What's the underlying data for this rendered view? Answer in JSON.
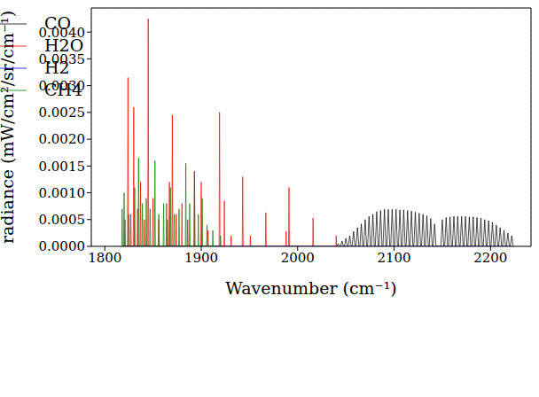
{
  "chart_data": {
    "type": "line",
    "x_label": "Wavenumber (cm⁻¹)",
    "y_label": "radiance (mW/cm²/sr/cm⁻¹)",
    "xlim": [
      1786,
      2242
    ],
    "xticks": [
      1800,
      1900,
      2000,
      2100,
      2200
    ],
    "ylim": [
      0,
      0.00445
    ],
    "yticks": [
      {
        "value": 0,
        "label": "0.0000"
      },
      {
        "value": 0.0005,
        "label": "0.0005"
      },
      {
        "value": 0.001,
        "label": "0.0010"
      },
      {
        "value": 0.0015,
        "label": "0.0015"
      },
      {
        "value": 0.002,
        "label": "0.0020"
      },
      {
        "value": 0.0025,
        "label": "0.0025"
      },
      {
        "value": 0.003,
        "label": "0.0030"
      },
      {
        "value": 0.0035,
        "label": "0.0035"
      },
      {
        "value": 0.004,
        "label": "0.0040"
      }
    ],
    "grid": true,
    "legend": "upper right",
    "series": [
      {
        "name": "CO",
        "color": "#000000",
        "x": [
          2040.5,
          2042,
          2043.5,
          2044.5,
          2046,
          2047.5,
          2048.5,
          2050,
          2051.5,
          2052.5,
          2054,
          2055.5,
          2056.5,
          2058,
          2059.5,
          2060.5,
          2062,
          2063.5,
          2064.5,
          2066,
          2067.5,
          2068.5,
          2070,
          2071.5,
          2072.5,
          2074,
          2075.5,
          2076.5,
          2078,
          2079.5,
          2080.5,
          2082,
          2083.5,
          2084.5,
          2086,
          2087.5,
          2088.5,
          2090,
          2091.5,
          2092.5,
          2094,
          2095.5,
          2096.5,
          2098,
          2099.5,
          2100.5,
          2102,
          2103.5,
          2104.5,
          2106,
          2107.5,
          2108.5,
          2110,
          2111.5,
          2112.5,
          2114,
          2115.5,
          2116.5,
          2118,
          2119.5,
          2120.5,
          2122,
          2123.5,
          2124.5,
          2126,
          2127.5,
          2128.5,
          2130,
          2131.5,
          2132.5,
          2134,
          2135.5,
          2136.5,
          2138,
          2139.5,
          2140.5,
          2142,
          2143.5,
          2148.5,
          2150,
          2151.5,
          2152.5,
          2154,
          2155.5,
          2156.5,
          2158,
          2159.5,
          2160.5,
          2162,
          2163.5,
          2164.5,
          2166,
          2167.5,
          2168.5,
          2170,
          2171.5,
          2172.5,
          2174,
          2175.5,
          2176.5,
          2178,
          2179.5,
          2180.5,
          2182,
          2183.5,
          2184.5,
          2186,
          2187.5,
          2188.5,
          2190,
          2191.5,
          2192.5,
          2194,
          2195.5,
          2196.5,
          2198,
          2199.5,
          2200.5,
          2202,
          2203.5,
          2204.5,
          2206,
          2207.5,
          2208.5,
          2210,
          2211.5,
          2212.5,
          2214,
          2215.5,
          2216.5,
          2218,
          2219.5,
          2220.5,
          2222,
          2223.5
        ],
        "values": [
          0,
          5e-05,
          0,
          0,
          0.0001,
          0,
          0,
          0.00015,
          0,
          0,
          0.0002,
          0,
          0,
          0.00028,
          0,
          0,
          0.00035,
          0,
          0,
          0.00042,
          0,
          0,
          0.0005,
          0,
          0,
          0.00056,
          0,
          0,
          0.0006,
          0,
          0,
          0.00065,
          0,
          0,
          0.00067,
          0,
          0,
          0.00069,
          0,
          0,
          0.00069,
          0,
          0,
          0.00069,
          0,
          0,
          0.00069,
          0,
          0,
          0.00068,
          0,
          0,
          0.00068,
          0,
          0,
          0.00067,
          0,
          0,
          0.00066,
          0,
          0,
          0.00064,
          0,
          0,
          0.00062,
          0,
          0,
          0.0006,
          0,
          0,
          0.00057,
          0,
          0,
          0.00052,
          0,
          0,
          0.00042,
          0,
          0,
          0.0005,
          0,
          0,
          0.00054,
          0,
          0,
          0.00055,
          0,
          0,
          0.00056,
          0,
          0,
          0.00056,
          0,
          0,
          0.00056,
          0,
          0,
          0.00056,
          0,
          0,
          0.00055,
          0,
          0,
          0.00055,
          0,
          0,
          0.00054,
          0,
          0,
          0.00053,
          0,
          0,
          0.0005,
          0,
          0,
          0.00048,
          0,
          0,
          0.00045,
          0,
          0,
          0.0004,
          0,
          0,
          0.00035,
          0,
          0,
          0.0003,
          0,
          0,
          0.00025,
          0,
          0,
          0.0002,
          0
        ]
      },
      {
        "name": "H2O",
        "color": "#ff0000",
        "x": [
          1820.5,
          1821,
          1821.5,
          1823.5,
          1824,
          1824.5,
          1826.5,
          1827,
          1827.5,
          1829.5,
          1830,
          1830.5,
          1833.5,
          1834,
          1834.5,
          1836.5,
          1837,
          1837.5,
          1840.5,
          1841,
          1841.5,
          1844.5,
          1845,
          1845.5,
          1849.5,
          1850,
          1850.5,
          1855.5,
          1856,
          1856.5,
          1863.5,
          1864,
          1864.5,
          1866.5,
          1867,
          1867.5,
          1869.5,
          1870,
          1870.5,
          1873.5,
          1874,
          1874.5,
          1879.5,
          1880,
          1880.5,
          1885.5,
          1886,
          1886.5,
          1892.5,
          1893,
          1893.5,
          1899.5,
          1900,
          1900.5,
          1906.5,
          1907,
          1907.5,
          1918.5,
          1919,
          1919.5,
          1923.5,
          1924,
          1924.5,
          1930.5,
          1931,
          1931.5,
          1942.5,
          1943,
          1943.5,
          1950.5,
          1951,
          1951.5,
          1966.5,
          1967,
          1967.5,
          1987.5,
          1988,
          1988.5,
          1990.5,
          1991,
          1991.5,
          2015.5,
          2016,
          2016.5,
          2039.5,
          2040,
          2040.5
        ],
        "values": [
          0,
          0.0005,
          0,
          0,
          0.00315,
          0,
          0,
          0.0006,
          0,
          0,
          0.0026,
          0,
          0,
          0.0007,
          0,
          0,
          0.0012,
          0,
          0,
          0.0005,
          0,
          0,
          0.00425,
          0,
          0,
          0.0009,
          0,
          0,
          0.0005,
          0,
          0,
          0.0008,
          0,
          0,
          0.0012,
          0,
          0,
          0.00245,
          0,
          0,
          0.0006,
          0,
          0,
          0.0008,
          0,
          0,
          0.0005,
          0,
          0,
          0.0014,
          0,
          0,
          0.0012,
          0,
          0,
          0.0003,
          0,
          0,
          0.0025,
          0,
          0,
          0.00085,
          0,
          0,
          0.0002,
          0,
          0,
          0.0013,
          0,
          0,
          0.0002,
          0,
          0,
          0.00063,
          0,
          0,
          0.00028,
          0,
          0,
          0.0011,
          0,
          0,
          0.00053,
          0,
          0,
          0.0002,
          0
        ]
      },
      {
        "name": "H2",
        "color": "#0000ff",
        "x": [
          1818,
          2222
        ],
        "values": [
          0,
          0
        ]
      },
      {
        "name": "CH4",
        "color": "#008000",
        "x": [
          1817.5,
          1818,
          1818.5,
          1819.5,
          1820,
          1820.5,
          1824.5,
          1825,
          1825.5,
          1830.5,
          1831,
          1831.5,
          1834.5,
          1835,
          1835.5,
          1838.5,
          1839,
          1839.5,
          1842.5,
          1843,
          1843.5,
          1846.5,
          1847,
          1847.5,
          1851.5,
          1852,
          1852.5,
          1855.5,
          1856,
          1856.5,
          1860.5,
          1861,
          1861.5,
          1864.5,
          1865,
          1865.5,
          1867.5,
          1868,
          1868.5,
          1871.5,
          1872,
          1872.5,
          1876.5,
          1877,
          1877.5,
          1883.5,
          1884,
          1884.5,
          1887.5,
          1888,
          1888.5,
          1892.5,
          1893,
          1893.5,
          1896.5,
          1897,
          1897.5,
          1900.5,
          1901,
          1901.5,
          1905.5,
          1906,
          1906.5,
          1911.5,
          1912,
          1912.5,
          1919.5,
          1920,
          1920.5
        ],
        "values": [
          0,
          0.0007,
          0,
          0,
          0.001,
          0,
          0,
          0.0006,
          0,
          0,
          0.0011,
          0,
          0,
          0.00165,
          0,
          0,
          0.0008,
          0,
          0,
          0.0009,
          0,
          0,
          0.0007,
          0,
          0,
          0.0016,
          0,
          0,
          0.0006,
          0,
          0,
          0.0008,
          0,
          0,
          0.0005,
          0,
          0,
          0.0011,
          0,
          0,
          0.0006,
          0,
          0,
          0.0007,
          0,
          0,
          0.00155,
          0,
          0,
          0.0008,
          0,
          0,
          0.0014,
          0,
          0,
          0.0006,
          0,
          0,
          0.0009,
          0,
          0,
          0.0004,
          0,
          0,
          0.0003,
          0,
          0,
          0.0002,
          0
        ]
      }
    ]
  }
}
